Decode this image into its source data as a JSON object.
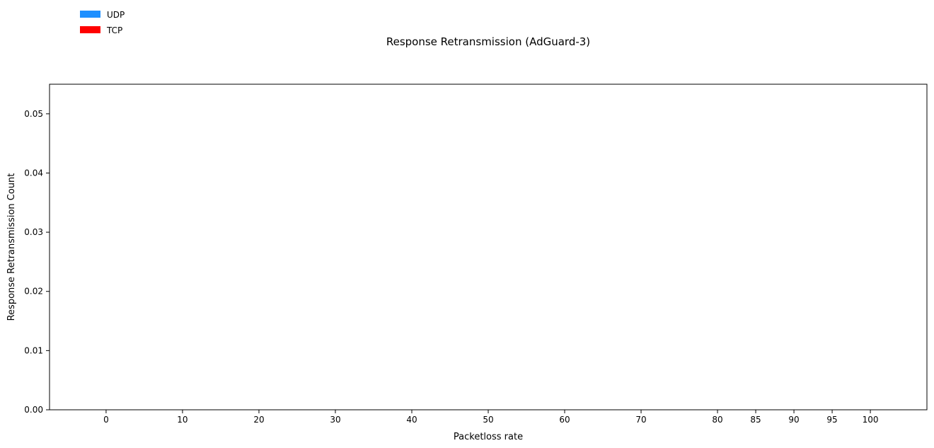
{
  "chart_data": {
    "type": "bar",
    "title": "Response Retransmission (AdGuard-3)",
    "xlabel": "Packetloss rate",
    "ylabel": "Response Retransmission Count",
    "categories": [
      "0",
      "10",
      "20",
      "30",
      "40",
      "50",
      "60",
      "70",
      "80",
      "85",
      "90",
      "95",
      "100"
    ],
    "x": [
      0,
      10,
      20,
      30,
      40,
      50,
      60,
      70,
      80,
      85,
      90,
      95,
      100
    ],
    "xlim": [
      -7.4,
      107.4
    ],
    "ylim": [
      0,
      0.055
    ],
    "yticks": [
      0.0,
      0.01,
      0.02,
      0.03,
      0.04,
      0.05
    ],
    "ytick_labels": [
      "0.00",
      "0.01",
      "0.02",
      "0.03",
      "0.04",
      "0.05"
    ],
    "series": [
      {
        "name": "UDP",
        "color": "#1e90ff",
        "values": [
          0,
          0,
          0,
          0,
          0,
          0,
          0,
          0,
          0,
          0,
          0,
          0,
          0
        ]
      },
      {
        "name": "TCP",
        "color": "#ff0000",
        "values": [
          0,
          0,
          0,
          0,
          0,
          0,
          0,
          0,
          0,
          0,
          0,
          0,
          0
        ]
      }
    ],
    "grid": false,
    "legend": "top-left"
  }
}
